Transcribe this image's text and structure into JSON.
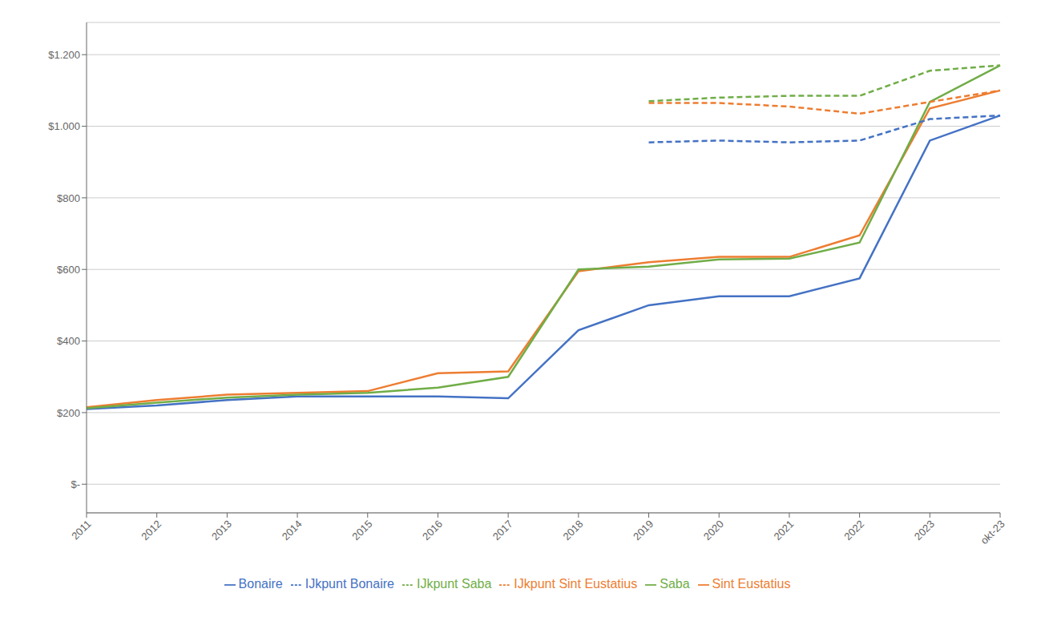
{
  "chart_data": {
    "type": "line",
    "categories": [
      "2011",
      "2012",
      "2013",
      "2014",
      "2015",
      "2016",
      "2017",
      "2018",
      "2019",
      "2020",
      "2021",
      "2022",
      "2023",
      "okt-23"
    ],
    "series": [
      {
        "name": "Bonaire",
        "color": "#4472C4",
        "line_style": "solid",
        "values": [
          210,
          220,
          235,
          245,
          245,
          245,
          240,
          430,
          500,
          525,
          525,
          575,
          960,
          1030
        ]
      },
      {
        "name": "Sint Eustatius",
        "color": "#ED7D31",
        "line_style": "solid",
        "values": [
          215,
          235,
          250,
          255,
          260,
          310,
          315,
          595,
          620,
          635,
          635,
          695,
          1050,
          1100
        ]
      },
      {
        "name": "Saba",
        "color": "#70AD47",
        "line_style": "solid",
        "values": [
          212,
          228,
          242,
          250,
          255,
          270,
          300,
          600,
          608,
          628,
          630,
          675,
          1068,
          1170
        ]
      },
      {
        "name": "IJkpunt Bonaire",
        "color": "#4472C4",
        "line_style": "dashed",
        "values": [
          null,
          null,
          null,
          null,
          null,
          null,
          null,
          null,
          955,
          960,
          955,
          960,
          1020,
          1030
        ]
      },
      {
        "name": "IJkpunt Sint Eustatius",
        "color": "#ED7D31",
        "line_style": "dashed",
        "values": [
          null,
          null,
          null,
          null,
          null,
          null,
          null,
          null,
          1065,
          1065,
          1055,
          1035,
          1068,
          1100
        ]
      },
      {
        "name": "IJkpunt Saba",
        "color": "#70AD47",
        "line_style": "dashed",
        "values": [
          null,
          null,
          null,
          null,
          null,
          null,
          null,
          null,
          1070,
          1080,
          1085,
          1085,
          1155,
          1170
        ]
      }
    ],
    "ylim": [
      -80,
      1290
    ],
    "yticks": [
      {
        "value": 0,
        "label": "$-"
      },
      {
        "value": 200,
        "label": "$200"
      },
      {
        "value": 400,
        "label": "$400"
      },
      {
        "value": 600,
        "label": "$600"
      },
      {
        "value": 800,
        "label": "$800"
      },
      {
        "value": 1000,
        "label": "$1.000"
      },
      {
        "value": 1200,
        "label": "$1.200"
      }
    ],
    "grid": true,
    "legend": "bottom"
  }
}
